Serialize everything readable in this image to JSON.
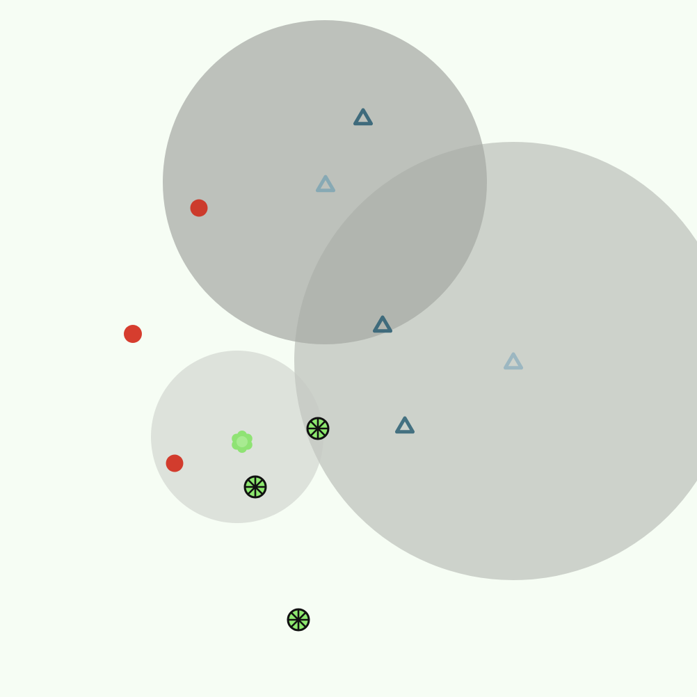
{
  "scene": {
    "background": "#f6fdf4",
    "circles": [
      {
        "id": "zone-top",
        "fill": "#9a9d98",
        "opacity": 0.62
      },
      {
        "id": "zone-right",
        "fill": "#a7aaa5",
        "opacity": 0.52
      },
      {
        "id": "zone-small",
        "fill": "#c6cac4",
        "opacity": 0.52
      }
    ],
    "dots": [
      {
        "id": "red-dot-1",
        "color": "#cc3b2c"
      },
      {
        "id": "red-dot-2",
        "color": "#d63d2e"
      },
      {
        "id": "red-dot-3",
        "color": "#d23c2d"
      }
    ],
    "triangles": [
      {
        "id": "triangle-1",
        "color": "#3f6b7c"
      },
      {
        "id": "triangle-2",
        "color": "#87a9b4"
      },
      {
        "id": "triangle-3",
        "color": "#3f6b7c"
      },
      {
        "id": "triangle-4",
        "color": "#9cb7c1"
      },
      {
        "id": "triangle-5",
        "color": "#447181"
      }
    ],
    "stars": [
      {
        "id": "star-1",
        "fill": "#8de86f",
        "stroke": "#111111",
        "style": "spoked"
      },
      {
        "id": "star-2",
        "fill": "#8de86f",
        "stroke": "#111111",
        "style": "spoked"
      },
      {
        "id": "star-3",
        "fill": "#8de86f",
        "stroke": "#111111",
        "style": "spoked"
      },
      {
        "id": "star-4",
        "fill": "#8fe374",
        "stroke": "#a8eb91",
        "style": "flower"
      }
    ]
  }
}
